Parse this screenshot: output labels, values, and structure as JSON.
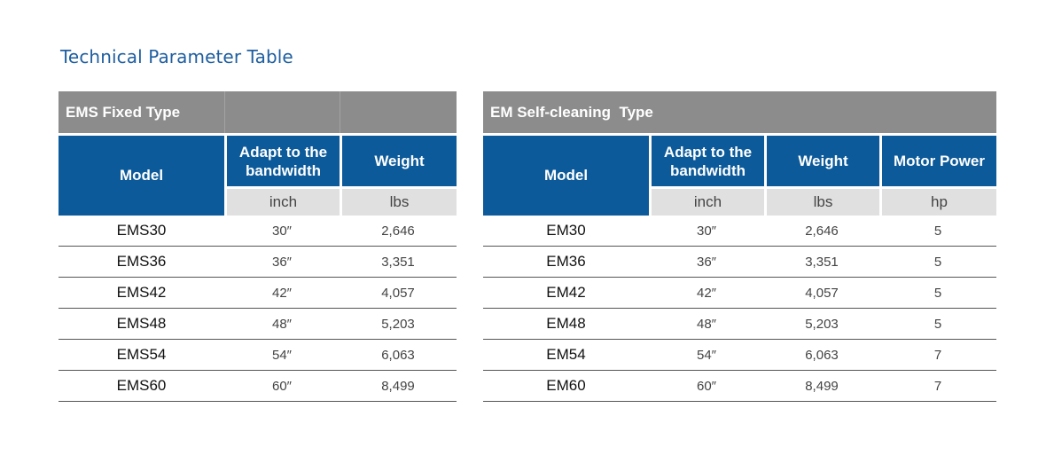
{
  "page_title": "Technical Parameter Table",
  "ems": {
    "title": "EMS Fixed Type",
    "headers": {
      "model": "Model",
      "bandwidth": "Adapt to the bandwidth",
      "weight": "Weight"
    },
    "units": {
      "bandwidth": "inch",
      "weight": "lbs"
    },
    "rows": [
      {
        "model": "EMS30",
        "bandwidth": "30″",
        "weight": "2,646"
      },
      {
        "model": "EMS36",
        "bandwidth": "36″",
        "weight": "3,351"
      },
      {
        "model": "EMS42",
        "bandwidth": "42″",
        "weight": "4,057"
      },
      {
        "model": "EMS48",
        "bandwidth": "48″",
        "weight": "5,203"
      },
      {
        "model": "EMS54",
        "bandwidth": "54″",
        "weight": "6,063"
      },
      {
        "model": "EMS60",
        "bandwidth": "60″",
        "weight": "8,499"
      }
    ]
  },
  "em": {
    "title": "EM Self-cleaning  Type",
    "headers": {
      "model": "Model",
      "bandwidth": "Adapt to the bandwidth",
      "weight": "Weight",
      "motor_power": "Motor Power"
    },
    "units": {
      "bandwidth": "inch",
      "weight": "lbs",
      "motor_power": "hp"
    },
    "rows": [
      {
        "model": "EM30",
        "bandwidth": "30″",
        "weight": "2,646",
        "motor_power": "5"
      },
      {
        "model": "EM36",
        "bandwidth": "36″",
        "weight": "3,351",
        "motor_power": "5"
      },
      {
        "model": "EM42",
        "bandwidth": "42″",
        "weight": "4,057",
        "motor_power": "5"
      },
      {
        "model": "EM48",
        "bandwidth": "48″",
        "weight": "5,203",
        "motor_power": "5"
      },
      {
        "model": "EM54",
        "bandwidth": "54″",
        "weight": "6,063",
        "motor_power": "7"
      },
      {
        "model": "EM60",
        "bandwidth": "60″",
        "weight": "8,499",
        "motor_power": "7"
      }
    ]
  },
  "colors": {
    "title_blue": "#1f5fa0",
    "header_blue": "#0c5a9a",
    "band_gray": "#8c8c8c",
    "unit_gray": "#e0e0e0"
  }
}
